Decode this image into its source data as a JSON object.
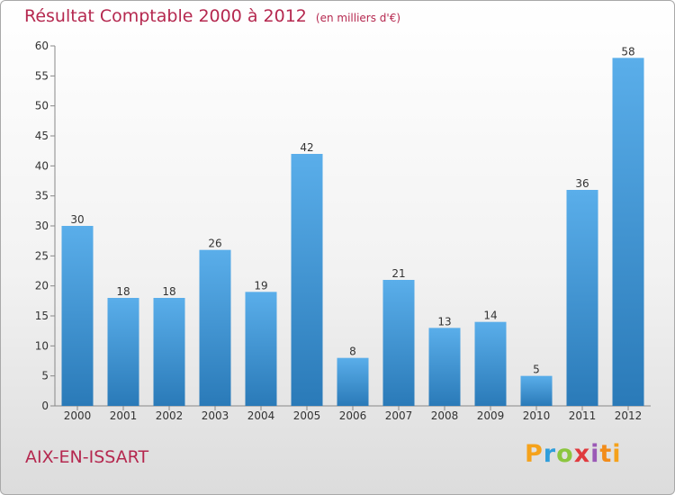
{
  "header": {
    "title": "Résultat Comptable 2000 à 2012",
    "subtitle": "(en milliers d'€)"
  },
  "footer": {
    "commune": "AIX-EN-ISSART",
    "logo_text": "Proxiti"
  },
  "colors": {
    "title": "#b5284f",
    "bar_top": "#5aaeea",
    "bar_bottom": "#2a7ab8"
  },
  "chart_data": {
    "type": "bar",
    "title": "Résultat Comptable 2000 à 2012",
    "subtitle": "(en milliers d'€)",
    "categories": [
      "2000",
      "2001",
      "2002",
      "2003",
      "2004",
      "2005",
      "2006",
      "2007",
      "2008",
      "2009",
      "2010",
      "2011",
      "2012"
    ],
    "values": [
      30,
      18,
      18,
      26,
      19,
      42,
      8,
      21,
      13,
      14,
      5,
      36,
      58
    ],
    "ylim": [
      0,
      60
    ],
    "yticks": [
      0,
      5,
      10,
      15,
      20,
      25,
      30,
      35,
      40,
      45,
      50,
      55,
      60
    ],
    "grid": false,
    "data_labels": true
  }
}
